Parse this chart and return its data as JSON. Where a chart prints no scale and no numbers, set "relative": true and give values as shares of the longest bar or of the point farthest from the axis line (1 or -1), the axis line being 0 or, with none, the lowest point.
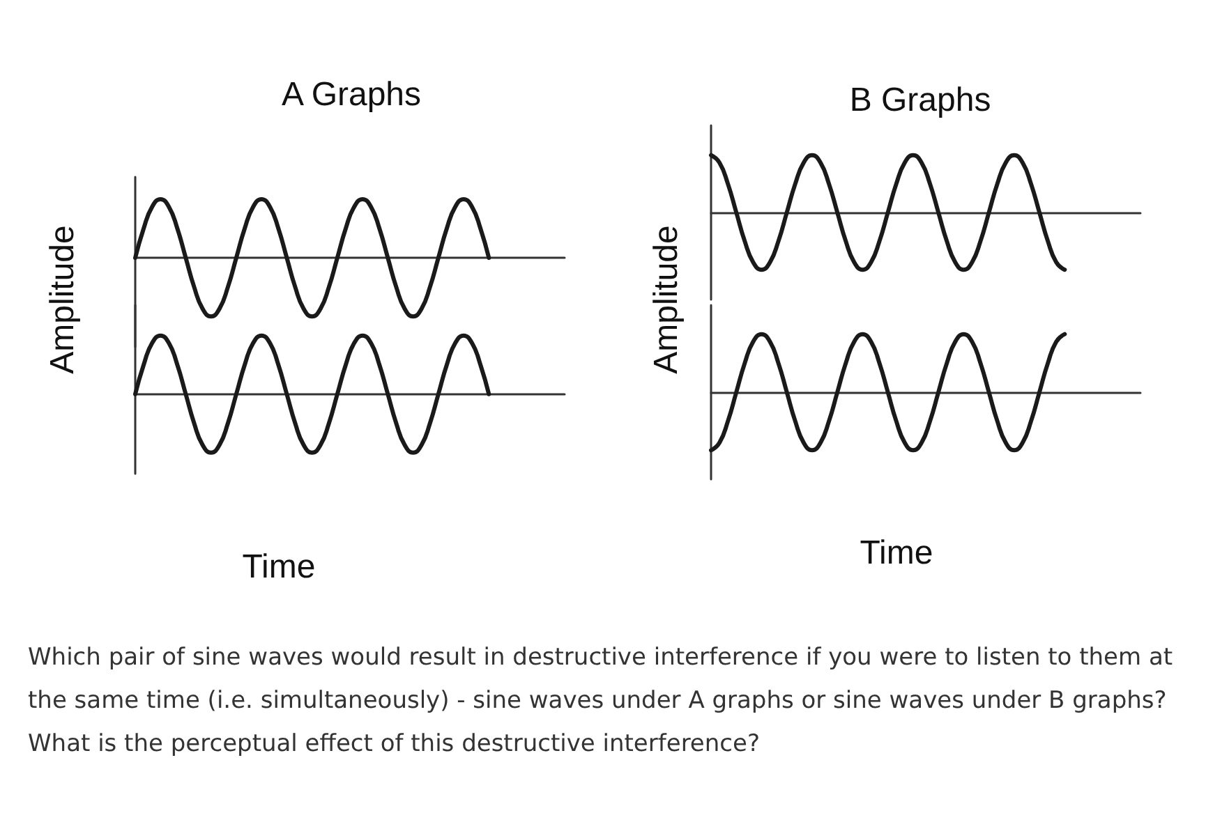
{
  "chart_data": [
    {
      "type": "line",
      "title": "A Graphs",
      "ylabel": "Amplitude",
      "relative": true,
      "categories": [
        null,
        null,
        null,
        null,
        null,
        null,
        null,
        null,
        null,
        null,
        null,
        null,
        null,
        null,
        null,
        null,
        null,
        null,
        null,
        null,
        null,
        null,
        null,
        null,
        null,
        null,
        null,
        null,
        null,
        null,
        null,
        null,
        null,
        null,
        null,
        null,
        null,
        null,
        null,
        null,
        null,
        null,
        null,
        null,
        null,
        null,
        null,
        null,
        null,
        null,
        null,
        null
      ],
      "series": [
        {
          "color": "#1a1a1a",
          "values": [
            0,
            0.5,
            0.87,
            1,
            0.87,
            0.5,
            0,
            -0.5,
            -0.87,
            -1,
            -0.87,
            -0.5,
            0,
            0.5,
            0.87,
            1,
            0.87,
            0.5,
            0,
            -0.5,
            -0.87,
            -1,
            -0.87,
            -0.5,
            0,
            0.5,
            0.87,
            1,
            0.87,
            0.5,
            0,
            -0.5,
            -0.87,
            -1,
            -0.87,
            -0.5,
            0,
            0.5,
            0.87,
            1,
            0.87,
            0.5,
            0,
            null,
            null,
            null,
            null,
            null,
            null,
            null,
            null,
            null
          ]
        }
      ]
    },
    {
      "type": "line",
      "xlabel": "Time",
      "relative": true,
      "categories": [
        null,
        null,
        null,
        null,
        null,
        null,
        null,
        null,
        null,
        null,
        null,
        null,
        null,
        null,
        null,
        null,
        null,
        null,
        null,
        null,
        null,
        null,
        null,
        null,
        null,
        null,
        null,
        null,
        null,
        null,
        null,
        null,
        null,
        null,
        null,
        null,
        null,
        null,
        null,
        null,
        null,
        null,
        null,
        null,
        null,
        null,
        null,
        null,
        null,
        null,
        null,
        null
      ],
      "series": [
        {
          "color": "#1a1a1a",
          "values": [
            0,
            0.5,
            0.87,
            1,
            0.87,
            0.5,
            0,
            -0.5,
            -0.87,
            -1,
            -0.87,
            -0.5,
            0,
            0.5,
            0.87,
            1,
            0.87,
            0.5,
            0,
            -0.5,
            -0.87,
            -1,
            -0.87,
            -0.5,
            0,
            0.5,
            0.87,
            1,
            0.87,
            0.5,
            0,
            -0.5,
            -0.87,
            -1,
            -0.87,
            -0.5,
            0,
            0.5,
            0.87,
            1,
            0.87,
            0.5,
            0,
            null,
            null,
            null,
            null,
            null,
            null,
            null,
            null,
            null
          ]
        }
      ]
    },
    {
      "type": "line",
      "title": "B Graphs",
      "ylabel": "Amplitude",
      "relative": true,
      "categories": [
        null,
        null,
        null,
        null,
        null,
        null,
        null,
        null,
        null,
        null,
        null,
        null,
        null,
        null,
        null,
        null,
        null,
        null,
        null,
        null,
        null,
        null,
        null,
        null,
        null,
        null,
        null,
        null,
        null,
        null,
        null,
        null,
        null,
        null,
        null,
        null,
        null,
        null,
        null,
        null,
        null,
        null,
        null,
        null,
        null,
        null,
        null,
        null,
        null,
        null,
        null,
        null
      ],
      "series": [
        {
          "color": "#1a1a1a",
          "values": [
            1,
            0.87,
            0.5,
            0,
            -0.5,
            -0.87,
            -1,
            -0.87,
            -0.5,
            0,
            0.5,
            0.87,
            1,
            0.87,
            0.5,
            0,
            -0.5,
            -0.87,
            -1,
            -0.87,
            -0.5,
            0,
            0.5,
            0.87,
            1,
            0.87,
            0.5,
            0,
            -0.5,
            -0.87,
            -1,
            -0.87,
            -0.5,
            0,
            0.5,
            0.87,
            1,
            0.87,
            0.5,
            0,
            -0.5,
            -0.87,
            -1,
            null,
            null,
            null,
            null,
            null,
            null,
            null,
            null,
            null
          ]
        }
      ]
    },
    {
      "type": "line",
      "xlabel": "Time",
      "relative": true,
      "categories": [
        null,
        null,
        null,
        null,
        null,
        null,
        null,
        null,
        null,
        null,
        null,
        null,
        null,
        null,
        null,
        null,
        null,
        null,
        null,
        null,
        null,
        null,
        null,
        null,
        null,
        null,
        null,
        null,
        null,
        null,
        null,
        null,
        null,
        null,
        null,
        null,
        null,
        null,
        null,
        null,
        null,
        null,
        null,
        null,
        null,
        null,
        null,
        null,
        null,
        null,
        null,
        null
      ],
      "series": [
        {
          "color": "#1a1a1a",
          "values": [
            -1,
            -0.87,
            -0.5,
            0,
            0.5,
            0.87,
            1,
            0.87,
            0.5,
            0,
            -0.5,
            -0.87,
            -1,
            -0.87,
            -0.5,
            0,
            0.5,
            0.87,
            1,
            0.87,
            0.5,
            0,
            -0.5,
            -0.87,
            -1,
            -0.87,
            -0.5,
            0,
            0.5,
            0.87,
            1,
            0.87,
            0.5,
            0,
            -0.5,
            -0.87,
            -1,
            -0.87,
            -0.5,
            0,
            0.5,
            0.87,
            1,
            null,
            null,
            null,
            null,
            null,
            null,
            null,
            null,
            null
          ]
        }
      ]
    },
    {
      "type": "other",
      "annotations": [
        "Which pair of sine waves would result in destructive interference if you were to listen to them at the same time (i.e. simultaneously) - sine waves under A graphs or sine waves under B graphs? What is the perceptual effect of this destructive interference?"
      ]
    }
  ]
}
